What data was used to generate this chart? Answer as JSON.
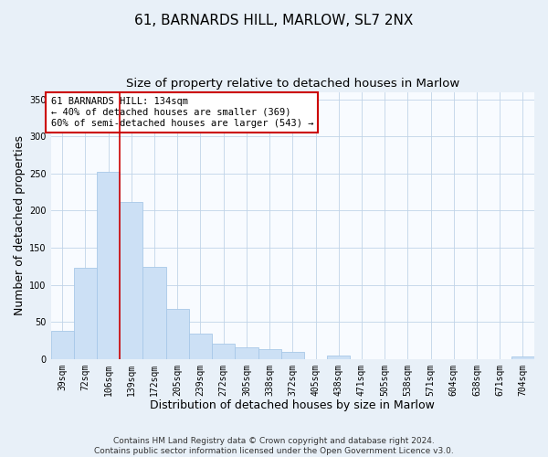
{
  "title": "61, BARNARDS HILL, MARLOW, SL7 2NX",
  "subtitle": "Size of property relative to detached houses in Marlow",
  "xlabel": "Distribution of detached houses by size in Marlow",
  "ylabel": "Number of detached properties",
  "categories": [
    "39sqm",
    "72sqm",
    "106sqm",
    "139sqm",
    "172sqm",
    "205sqm",
    "239sqm",
    "272sqm",
    "305sqm",
    "338sqm",
    "372sqm",
    "405sqm",
    "438sqm",
    "471sqm",
    "505sqm",
    "538sqm",
    "571sqm",
    "604sqm",
    "638sqm",
    "671sqm",
    "704sqm"
  ],
  "values": [
    38,
    123,
    252,
    212,
    124,
    67,
    34,
    20,
    16,
    13,
    10,
    0,
    5,
    0,
    0,
    0,
    0,
    0,
    0,
    0,
    3
  ],
  "bar_color": "#cce0f5",
  "bar_edge_color": "#a8c8e8",
  "vline_color": "#cc0000",
  "vline_xindex": 2.5,
  "annotation_box_text": "61 BARNARDS HILL: 134sqm\n← 40% of detached houses are smaller (369)\n60% of semi-detached houses are larger (543) →",
  "annotation_box_color": "#ffffff",
  "annotation_box_edgecolor": "#cc0000",
  "ylim": [
    0,
    360
  ],
  "yticks": [
    0,
    50,
    100,
    150,
    200,
    250,
    300,
    350
  ],
  "footer_text": "Contains HM Land Registry data © Crown copyright and database right 2024.\nContains public sector information licensed under the Open Government Licence v3.0.",
  "bg_color": "#e8f0f8",
  "plot_bg_color": "#f8fbff",
  "grid_color": "#c0d4e8",
  "title_fontsize": 11,
  "subtitle_fontsize": 9.5,
  "axis_label_fontsize": 9,
  "tick_fontsize": 7,
  "annotation_fontsize": 7.5,
  "footer_fontsize": 6.5
}
